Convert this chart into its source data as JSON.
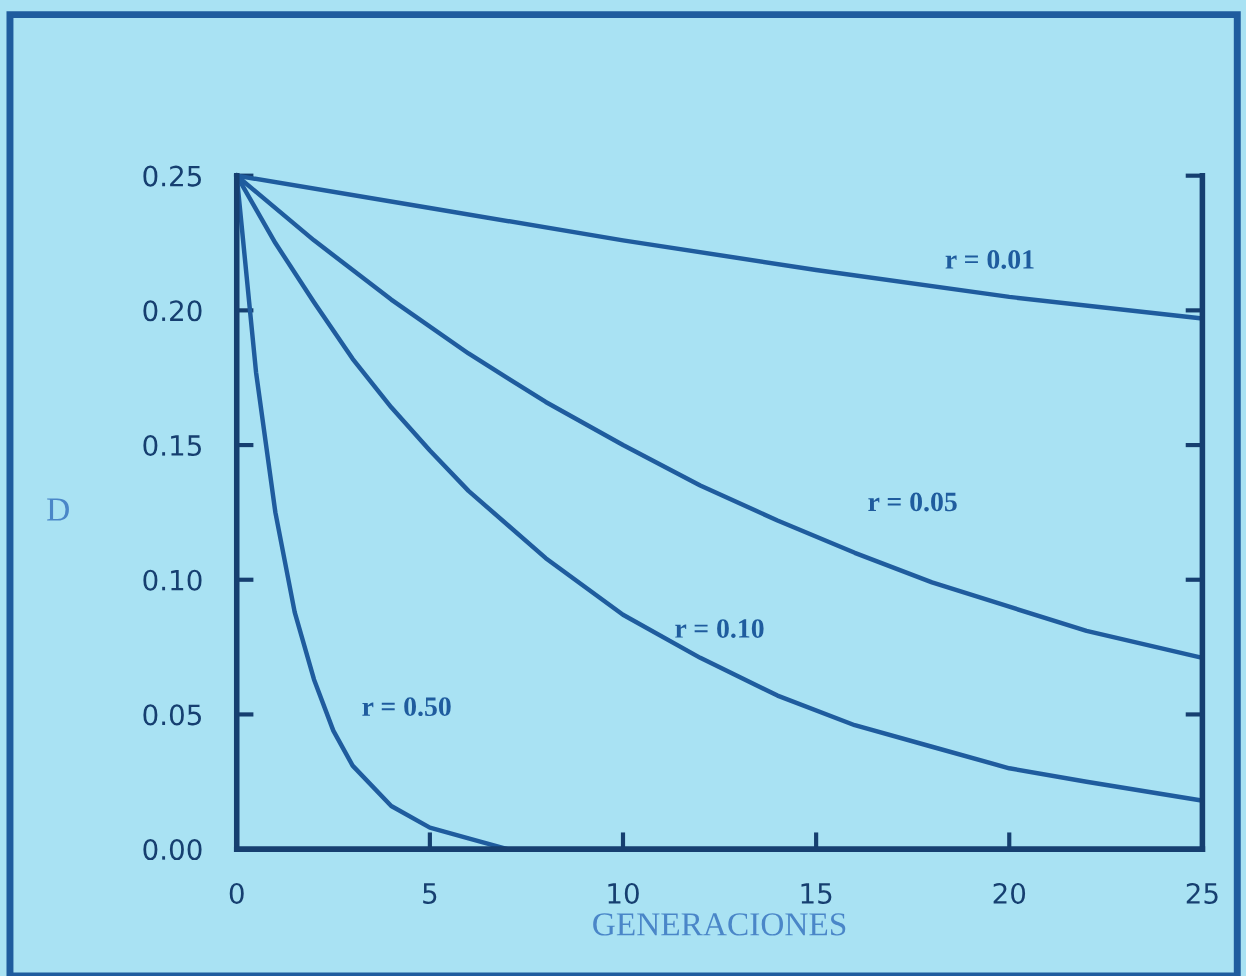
{
  "chart_data": {
    "type": "line",
    "xlabel": "GENERACIONES",
    "ylabel": "D",
    "xlim": [
      0,
      25
    ],
    "ylim": [
      0,
      0.25
    ],
    "xticks": [
      0,
      5,
      10,
      15,
      20,
      25
    ],
    "yticks": [
      {
        "value": 0,
        "label": "0.00"
      },
      {
        "value": 0.05,
        "label": "0.05"
      },
      {
        "value": 0.1,
        "label": "0.10"
      },
      {
        "value": 0.15,
        "label": "0.15"
      },
      {
        "value": 0.2,
        "label": "0.20"
      },
      {
        "value": 0.25,
        "label": "0.25"
      }
    ],
    "grid": false,
    "legend": false,
    "marker": "none",
    "line_style": "solid",
    "series": [
      {
        "name": "r = 0.01",
        "color": "#1f5c9e",
        "x": [
          0,
          5,
          10,
          15,
          20,
          25
        ],
        "values": [
          0.25,
          0.238,
          0.226,
          0.215,
          0.205,
          0.197
        ]
      },
      {
        "name": "r = 0.05",
        "color": "#1f5c9e",
        "x": [
          0,
          2,
          4,
          6,
          8,
          10,
          12,
          14,
          16,
          18,
          20,
          22,
          25
        ],
        "values": [
          0.25,
          0.226,
          0.204,
          0.184,
          0.166,
          0.15,
          0.135,
          0.122,
          0.11,
          0.099,
          0.09,
          0.081,
          0.071
        ]
      },
      {
        "name": "r = 0.10",
        "color": "#1f5c9e",
        "x": [
          0,
          1,
          2,
          3,
          4,
          5,
          6,
          8,
          10,
          12,
          14,
          16,
          18,
          20,
          22,
          25
        ],
        "values": [
          0.25,
          0.225,
          0.203,
          0.182,
          0.164,
          0.148,
          0.133,
          0.108,
          0.087,
          0.071,
          0.057,
          0.046,
          0.038,
          0.03,
          0.025,
          0.018
        ]
      },
      {
        "name": "r = 0.50",
        "color": "#1f5c9e",
        "x": [
          0,
          0.5,
          1,
          1.5,
          2,
          2.5,
          3,
          4,
          5,
          6,
          7
        ],
        "values": [
          0.25,
          0.177,
          0.125,
          0.088,
          0.063,
          0.044,
          0.031,
          0.016,
          0.008,
          0.004,
          0.0
        ]
      }
    ]
  }
}
